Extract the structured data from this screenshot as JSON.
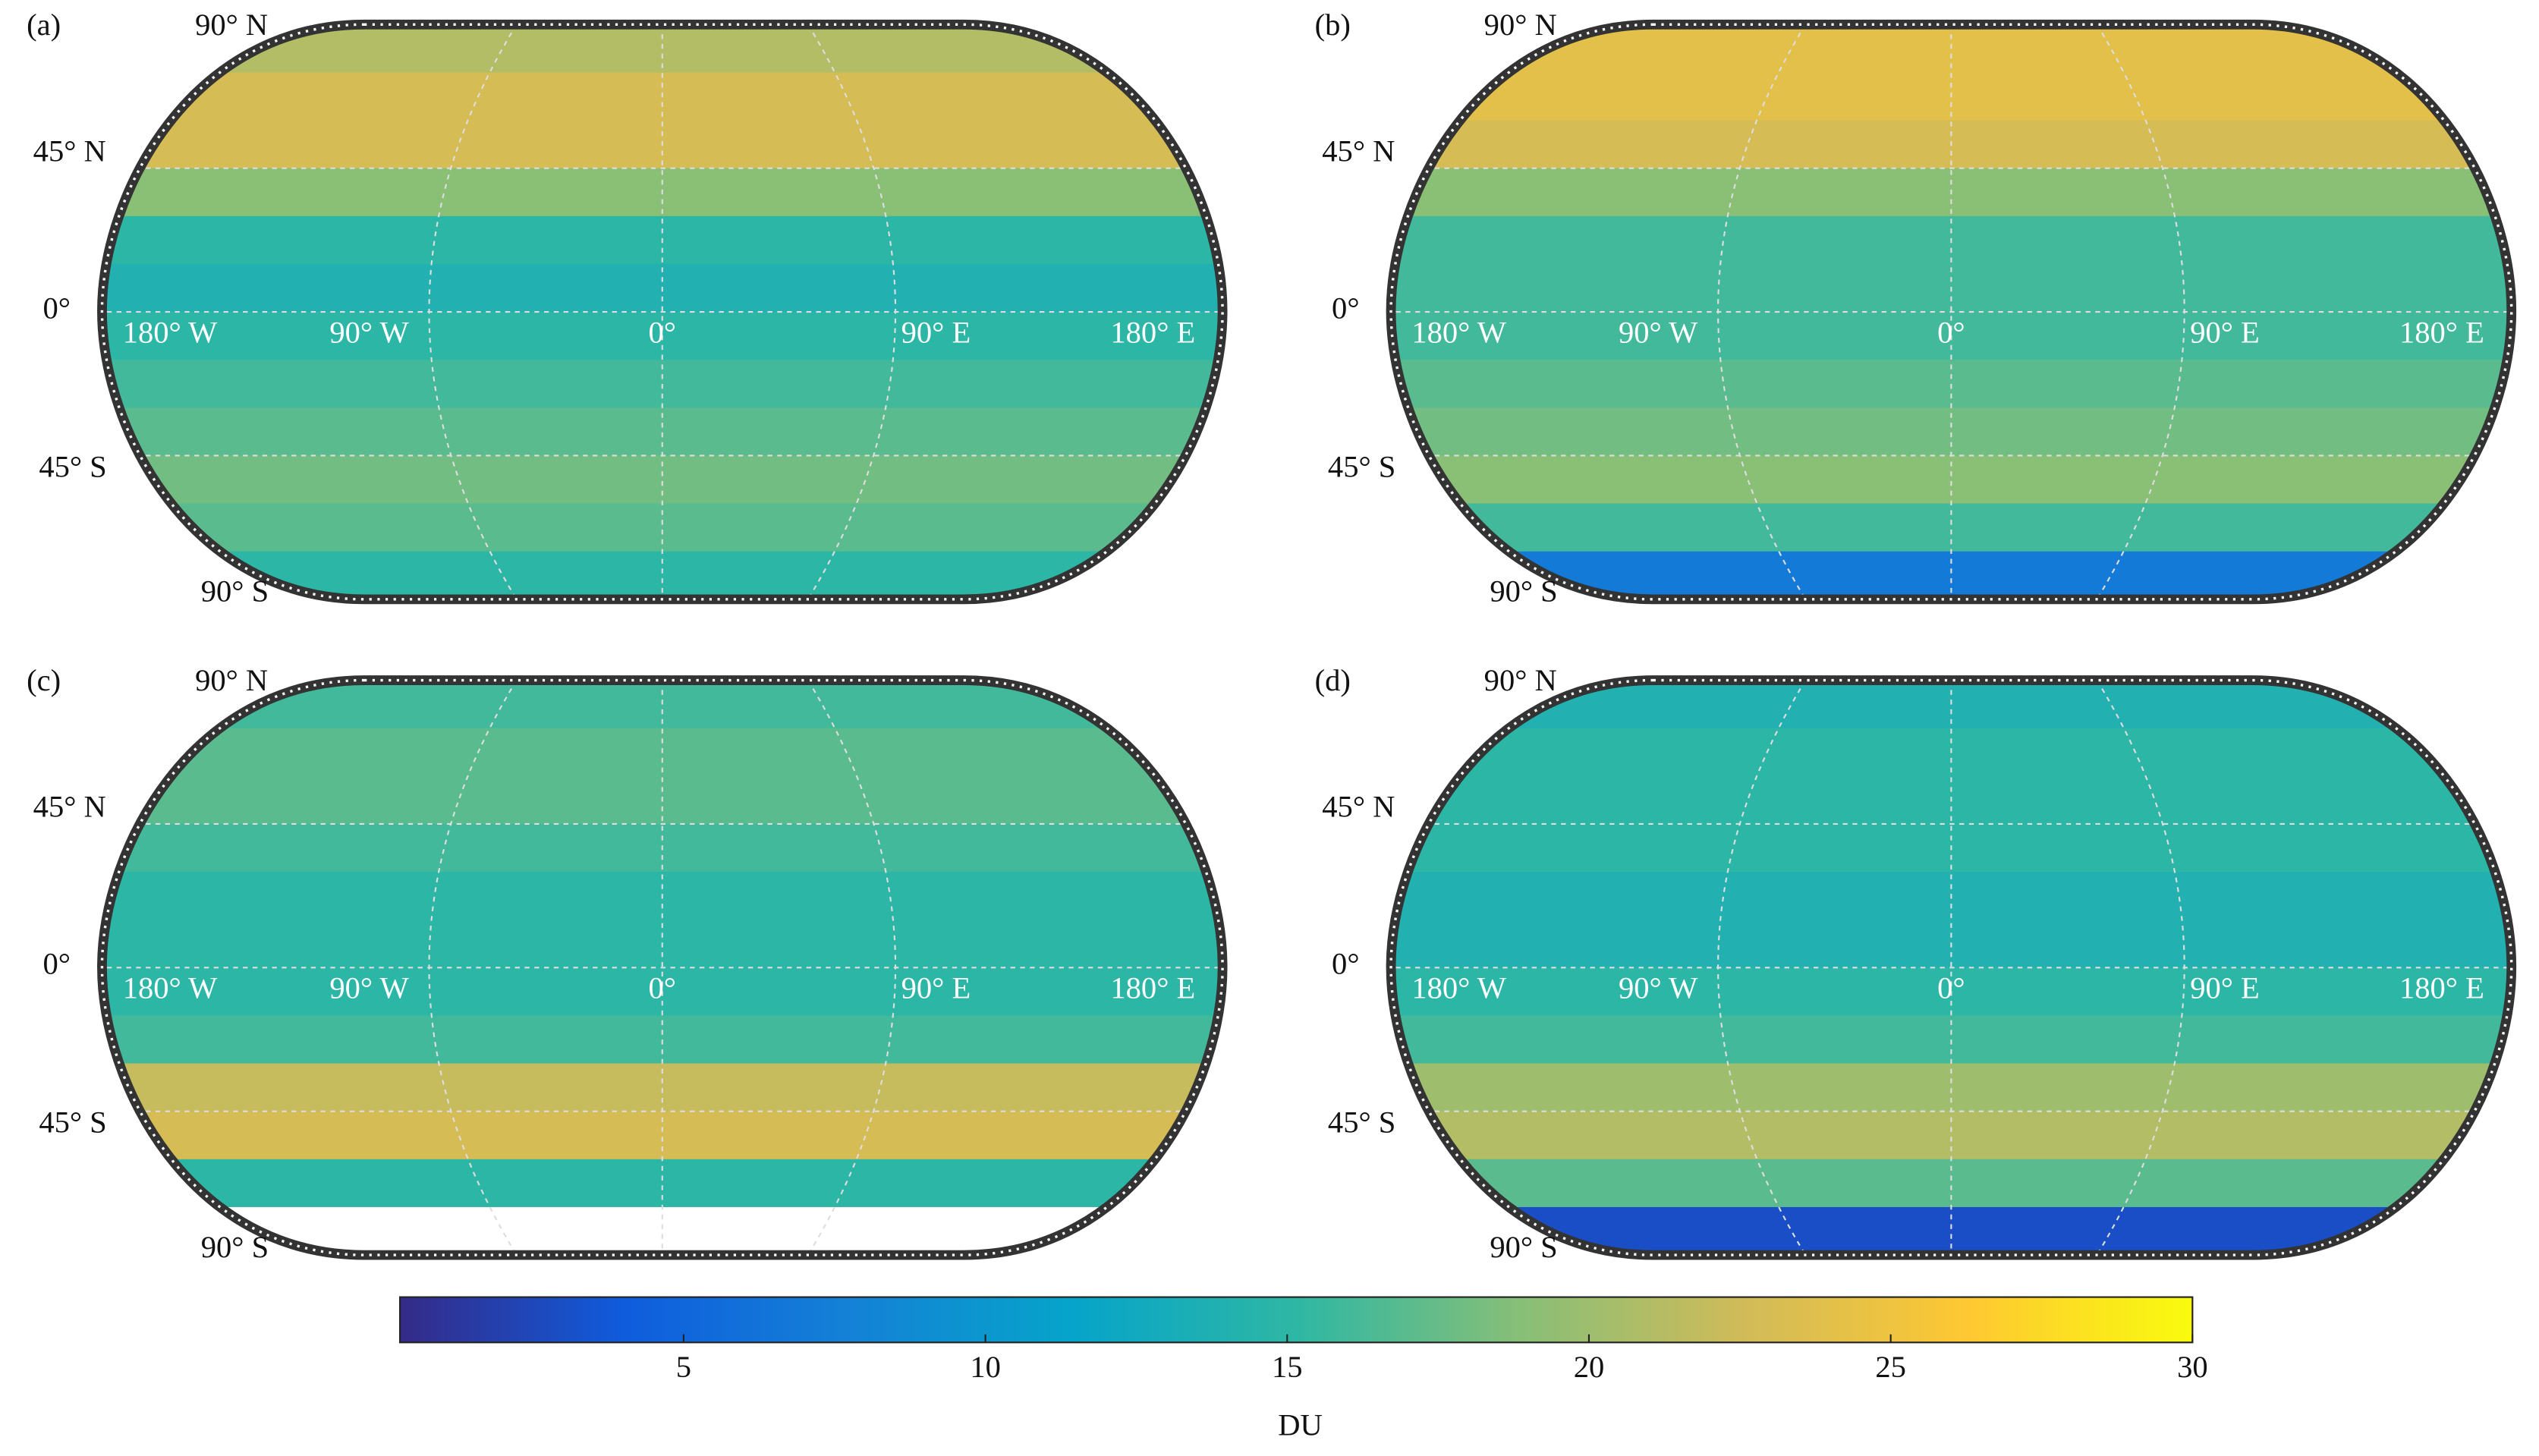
{
  "axes": {
    "lat_labels": [
      "90° N",
      "45° N",
      "0°",
      "45° S",
      "90° S"
    ],
    "lon_labels": [
      "180° W",
      "90° W",
      "0°",
      "90° E",
      "180° E"
    ],
    "band_lats": [
      90,
      75,
      60,
      45,
      30,
      15,
      0,
      -15,
      -30,
      -45,
      -60,
      -75,
      -90
    ]
  },
  "panels": [
    {
      "label": "(a)",
      "values": [
        21,
        23,
        23,
        19,
        15,
        14,
        15,
        16,
        17,
        18,
        17,
        15
      ]
    },
    {
      "label": "(b)",
      "values": [
        24,
        24,
        23,
        19,
        16,
        16,
        16,
        17,
        18,
        19,
        16,
        7
      ]
    },
    {
      "label": "(c)",
      "values": [
        16,
        17,
        17,
        16,
        15,
        15,
        15,
        16,
        22,
        23,
        15,
        null
      ]
    },
    {
      "label": "(d)",
      "values": [
        14,
        15,
        15,
        15,
        14,
        14,
        15,
        16,
        20,
        21,
        17,
        3
      ]
    }
  ],
  "colorbar": {
    "label": "DU",
    "clim": [
      0.3,
      30
    ],
    "ticks": [
      5,
      10,
      15,
      20,
      25,
      30
    ],
    "colormap": [
      "#352a87",
      "#0f5cdd",
      "#1481d6",
      "#06a4ca",
      "#2eb7a4",
      "#87bf77",
      "#d1bb59",
      "#fec832",
      "#f9fb0e"
    ]
  }
}
